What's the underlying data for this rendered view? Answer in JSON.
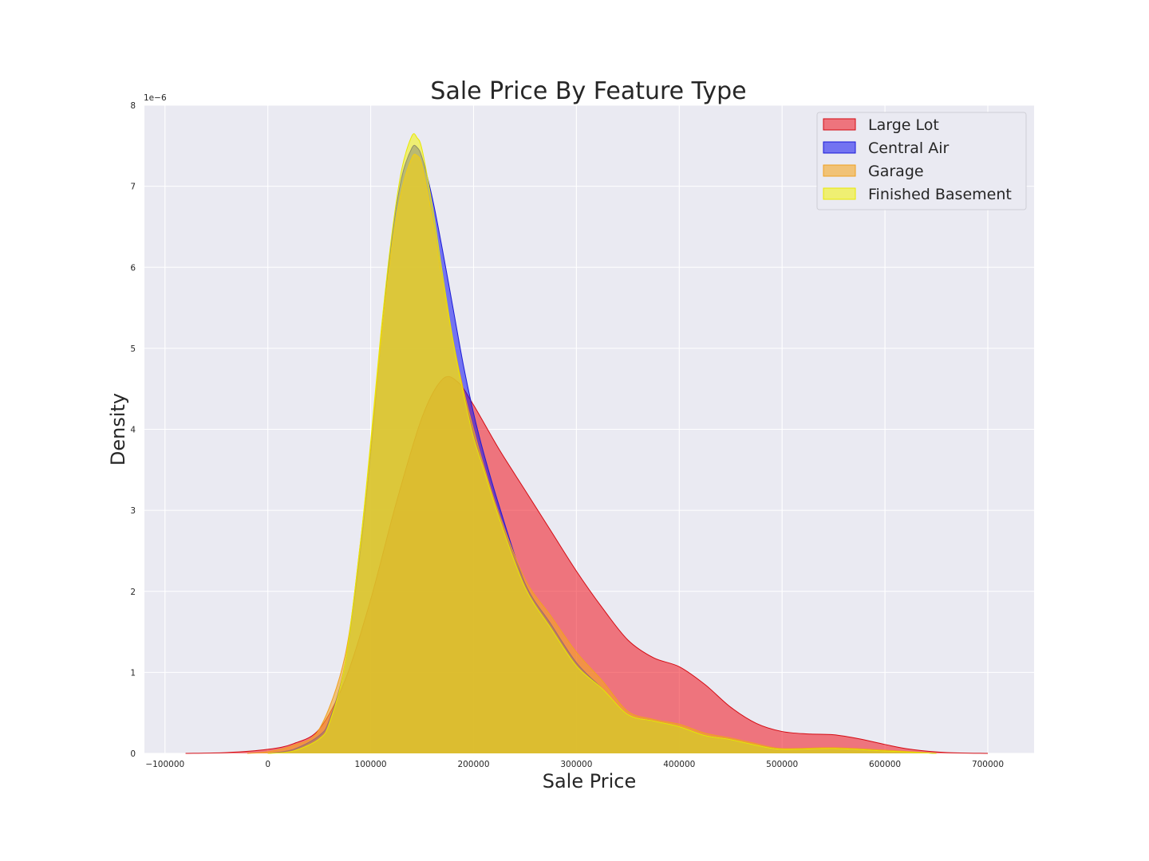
{
  "chart_data": {
    "type": "area",
    "title": "Sale Price By Feature Type",
    "xlabel": "Sale Price",
    "ylabel": "Density",
    "y_offset_label": "1e−6",
    "xlim": [
      -120000,
      745000
    ],
    "ylim": [
      0,
      8
    ],
    "y_scale_factor": 1e-06,
    "xticks": [
      -100000,
      0,
      100000,
      200000,
      300000,
      400000,
      500000,
      600000,
      700000
    ],
    "xtick_labels": [
      "−100000",
      "0",
      "100000",
      "200000",
      "300000",
      "400000",
      "500000",
      "600000",
      "700000"
    ],
    "yticks": [
      0,
      1,
      2,
      3,
      4,
      5,
      6,
      7,
      8
    ],
    "ytick_labels": [
      "0",
      "1",
      "2",
      "3",
      "4",
      "5",
      "6",
      "7",
      "8"
    ],
    "grid": true,
    "legend_position": "top-right",
    "series": [
      {
        "name": "Large Lot",
        "fill": "#f0131e",
        "stroke": "#d40b12",
        "fill_opacity": 0.55,
        "points": [
          [
            -80000,
            0
          ],
          [
            -40000,
            0.01
          ],
          [
            0,
            0.05
          ],
          [
            25000,
            0.12
          ],
          [
            50000,
            0.3
          ],
          [
            75000,
            0.9
          ],
          [
            100000,
            1.9
          ],
          [
            125000,
            3.1
          ],
          [
            150000,
            4.15
          ],
          [
            170000,
            4.62
          ],
          [
            185000,
            4.58
          ],
          [
            200000,
            4.3
          ],
          [
            225000,
            3.75
          ],
          [
            250000,
            3.25
          ],
          [
            275000,
            2.75
          ],
          [
            300000,
            2.25
          ],
          [
            325000,
            1.8
          ],
          [
            350000,
            1.4
          ],
          [
            375000,
            1.18
          ],
          [
            400000,
            1.07
          ],
          [
            425000,
            0.85
          ],
          [
            450000,
            0.57
          ],
          [
            475000,
            0.37
          ],
          [
            500000,
            0.27
          ],
          [
            525000,
            0.24
          ],
          [
            550000,
            0.23
          ],
          [
            575000,
            0.18
          ],
          [
            600000,
            0.11
          ],
          [
            625000,
            0.05
          ],
          [
            660000,
            0.01
          ],
          [
            700000,
            0
          ]
        ]
      },
      {
        "name": "Central Air",
        "fill": "#1010f0",
        "stroke": "#1a1ad8",
        "fill_opacity": 0.55,
        "points": [
          [
            0,
            0
          ],
          [
            25000,
            0.05
          ],
          [
            50000,
            0.22
          ],
          [
            60000,
            0.42
          ],
          [
            75000,
            1.1
          ],
          [
            90000,
            2.5
          ],
          [
            100000,
            3.7
          ],
          [
            110000,
            5.1
          ],
          [
            120000,
            6.3
          ],
          [
            130000,
            7.1
          ],
          [
            140000,
            7.47
          ],
          [
            145000,
            7.48
          ],
          [
            150000,
            7.35
          ],
          [
            160000,
            6.85
          ],
          [
            170000,
            6.2
          ],
          [
            180000,
            5.5
          ],
          [
            190000,
            4.8
          ],
          [
            200000,
            4.2
          ],
          [
            210000,
            3.7
          ],
          [
            225000,
            3.05
          ],
          [
            250000,
            2.1
          ],
          [
            275000,
            1.6
          ],
          [
            300000,
            1.12
          ],
          [
            325000,
            0.8
          ],
          [
            350000,
            0.48
          ],
          [
            375000,
            0.4
          ],
          [
            400000,
            0.33
          ],
          [
            425000,
            0.22
          ],
          [
            450000,
            0.17
          ],
          [
            475000,
            0.1
          ],
          [
            500000,
            0.05
          ],
          [
            550000,
            0.06
          ],
          [
            600000,
            0.03
          ],
          [
            650000,
            0
          ]
        ]
      },
      {
        "name": "Garage",
        "fill": "#f5a623",
        "stroke": "#f0a020",
        "fill_opacity": 0.6,
        "points": [
          [
            -20000,
            0
          ],
          [
            0,
            0.02
          ],
          [
            25000,
            0.1
          ],
          [
            50000,
            0.3
          ],
          [
            75000,
            1.2
          ],
          [
            90000,
            2.6
          ],
          [
            100000,
            3.8
          ],
          [
            110000,
            5.1
          ],
          [
            120000,
            6.2
          ],
          [
            130000,
            6.95
          ],
          [
            140000,
            7.35
          ],
          [
            145000,
            7.38
          ],
          [
            150000,
            7.25
          ],
          [
            160000,
            6.6
          ],
          [
            170000,
            5.8
          ],
          [
            180000,
            5.1
          ],
          [
            190000,
            4.5
          ],
          [
            200000,
            4.0
          ],
          [
            210000,
            3.55
          ],
          [
            225000,
            2.95
          ],
          [
            250000,
            2.15
          ],
          [
            275000,
            1.7
          ],
          [
            300000,
            1.25
          ],
          [
            325000,
            0.9
          ],
          [
            350000,
            0.52
          ],
          [
            375000,
            0.42
          ],
          [
            400000,
            0.36
          ],
          [
            425000,
            0.25
          ],
          [
            450000,
            0.19
          ],
          [
            475000,
            0.12
          ],
          [
            500000,
            0.06
          ],
          [
            550000,
            0.07
          ],
          [
            600000,
            0.04
          ],
          [
            650000,
            0
          ]
        ]
      },
      {
        "name": "Finished Basement",
        "fill": "#f2f20a",
        "stroke": "#e8e800",
        "fill_opacity": 0.55,
        "points": [
          [
            0,
            0
          ],
          [
            25000,
            0.03
          ],
          [
            50000,
            0.18
          ],
          [
            60000,
            0.38
          ],
          [
            75000,
            1.1
          ],
          [
            90000,
            2.6
          ],
          [
            100000,
            3.85
          ],
          [
            110000,
            5.2
          ],
          [
            120000,
            6.35
          ],
          [
            130000,
            7.2
          ],
          [
            140000,
            7.62
          ],
          [
            145000,
            7.6
          ],
          [
            150000,
            7.45
          ],
          [
            160000,
            6.75
          ],
          [
            170000,
            5.9
          ],
          [
            180000,
            5.1
          ],
          [
            190000,
            4.45
          ],
          [
            200000,
            3.9
          ],
          [
            210000,
            3.5
          ],
          [
            225000,
            2.9
          ],
          [
            250000,
            2.05
          ],
          [
            275000,
            1.55
          ],
          [
            300000,
            1.08
          ],
          [
            325000,
            0.8
          ],
          [
            350000,
            0.48
          ],
          [
            375000,
            0.4
          ],
          [
            400000,
            0.33
          ],
          [
            425000,
            0.22
          ],
          [
            450000,
            0.17
          ],
          [
            475000,
            0.1
          ],
          [
            500000,
            0.05
          ],
          [
            550000,
            0.06
          ],
          [
            600000,
            0.03
          ],
          [
            650000,
            0
          ]
        ]
      }
    ]
  }
}
